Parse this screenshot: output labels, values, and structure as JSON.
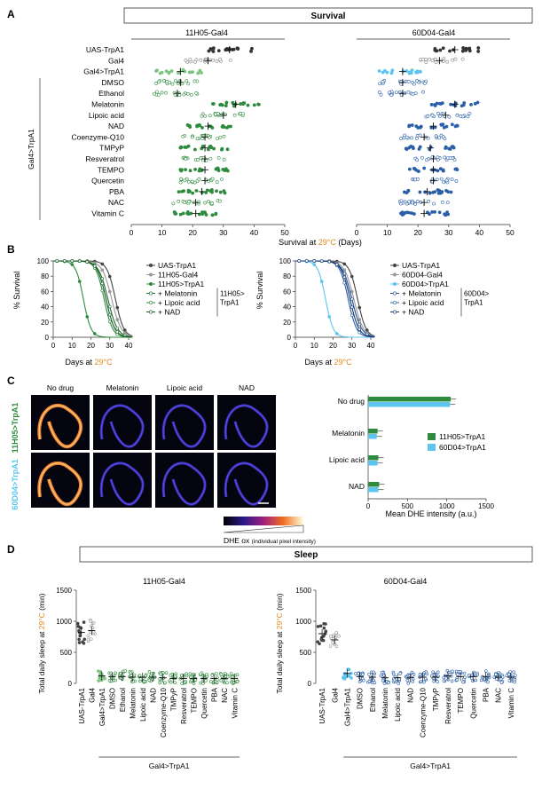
{
  "panels": {
    "a": "A",
    "b": "B",
    "c": "C",
    "d": "D"
  },
  "survival": {
    "header": "Survival",
    "gal4_left": "11H05-Gal4",
    "gal4_right": "60D04-Gal4",
    "group_label": "Gal4>TrpA1",
    "rows": [
      "UAS-TrpA1",
      "Gal4",
      "Gal4>TrpA1",
      "DMSO",
      "Ethanol",
      "Melatonin",
      "Lipoic acid",
      "NAD",
      "Coenzyme-Q10",
      "TMPyP",
      "Resveratrol",
      "TEMPO",
      "Quercetin",
      "PBA",
      "NAC",
      "Vitamin C"
    ],
    "xticks": [
      "0",
      "10",
      "20",
      "30",
      "40",
      "50"
    ],
    "xlabel_pre": "Survival at ",
    "xlabel_temp": "29°C",
    "xlabel_post": " (Days)",
    "left_means": [
      32,
      25,
      16,
      16,
      15,
      34,
      30,
      25,
      24,
      24,
      24,
      24,
      24,
      23,
      21,
      21
    ],
    "right_means": [
      32,
      27,
      15,
      15,
      15,
      32,
      29,
      25,
      22,
      24,
      25,
      25,
      25,
      23,
      22,
      22
    ]
  },
  "curves": {
    "ylabel": "% Survival",
    "xlabel_pre": "Days at ",
    "xlabel_temp": "29°C",
    "yticks": [
      "0",
      "20",
      "40",
      "60",
      "80",
      "100"
    ],
    "xticks": [
      "0",
      "10",
      "20",
      "30",
      "40"
    ],
    "left_legend": [
      "UAS-TrpA1",
      "11H05-Gal4",
      "11H05>TrpA1",
      "+ Melatonin",
      "+ Lipoic acid",
      "+ NAD"
    ],
    "left_bracket": [
      "11H05>",
      "TrpA1"
    ],
    "right_legend": [
      "UAS-TrpA1",
      "60D04-Gal4",
      "60D04>TrpA1",
      "+ Melatonin",
      "+ Lipoic acid",
      "+ NAD"
    ],
    "right_bracket": [
      "60D04>",
      "TrpA1"
    ]
  },
  "dhe": {
    "columns": [
      "No drug",
      "Melatonin",
      "Lipoic acid",
      "NAD"
    ],
    "row1_label": "11H05>TrpA1",
    "row2_label": "60D04>TrpA1",
    "scale_label": "DHE ox",
    "scale_sub": "(individual pixel intensity)",
    "bar_categories": [
      "No drug",
      "Melatonin",
      "Lipoic acid",
      "NAD"
    ],
    "legend": [
      "11H05>TrpA1",
      "60D04>TrpA1"
    ],
    "xticks": [
      "0",
      "500",
      "1000",
      "1500"
    ],
    "xlabel": "Mean DHE intensity (a.u.)"
  },
  "chart_data": {
    "type": "bar",
    "categories": [
      "No drug",
      "Melatonin",
      "Lipoic acid",
      "NAD"
    ],
    "series": [
      {
        "name": "11H05>TrpA1",
        "values": [
          1050,
          120,
          130,
          140
        ]
      },
      {
        "name": "60D04>TrpA1",
        "values": [
          1040,
          110,
          120,
          130
        ]
      }
    ],
    "xlabel": "Mean DHE intensity (a.u.)",
    "xlim": [
      0,
      1500
    ]
  },
  "sleep": {
    "header": "Sleep",
    "gal4_left": "11H05-Gal4",
    "gal4_right": "60D04-Gal4",
    "ylabel_pre": "Total daily sleep at ",
    "ylabel_temp": "29°C",
    "ylabel_post": " (min)",
    "yticks": [
      "0",
      "500",
      "1000",
      "1500"
    ],
    "categories": [
      "UAS-TrpA1",
      "Gal4",
      "Gal4>TrpA1",
      "DMSO",
      "Ethanol",
      "Melatonin",
      "Lipoic acid",
      "NAD",
      "Coenzyme-Q10",
      "TMPyP",
      "Resveratrol",
      "TEMPO",
      "Quercetin",
      "PBA",
      "NAC",
      "Vitamin C"
    ],
    "group_label": "Gal4>TrpA1",
    "left_means": [
      820,
      850,
      120,
      110,
      110,
      100,
      100,
      100,
      90,
      80,
      80,
      80,
      80,
      80,
      80,
      80
    ],
    "right_means": [
      800,
      700,
      160,
      110,
      100,
      90,
      90,
      90,
      100,
      100,
      120,
      110,
      110,
      110,
      100,
      100
    ]
  },
  "colors": {
    "green": "#2e8b3e",
    "lightgreen": "#7cc47f",
    "blue": "#2a5fa8",
    "lightblue": "#5bc4ef",
    "orange": "#e08a1e",
    "dark": "#333333",
    "grey": "#888888"
  }
}
